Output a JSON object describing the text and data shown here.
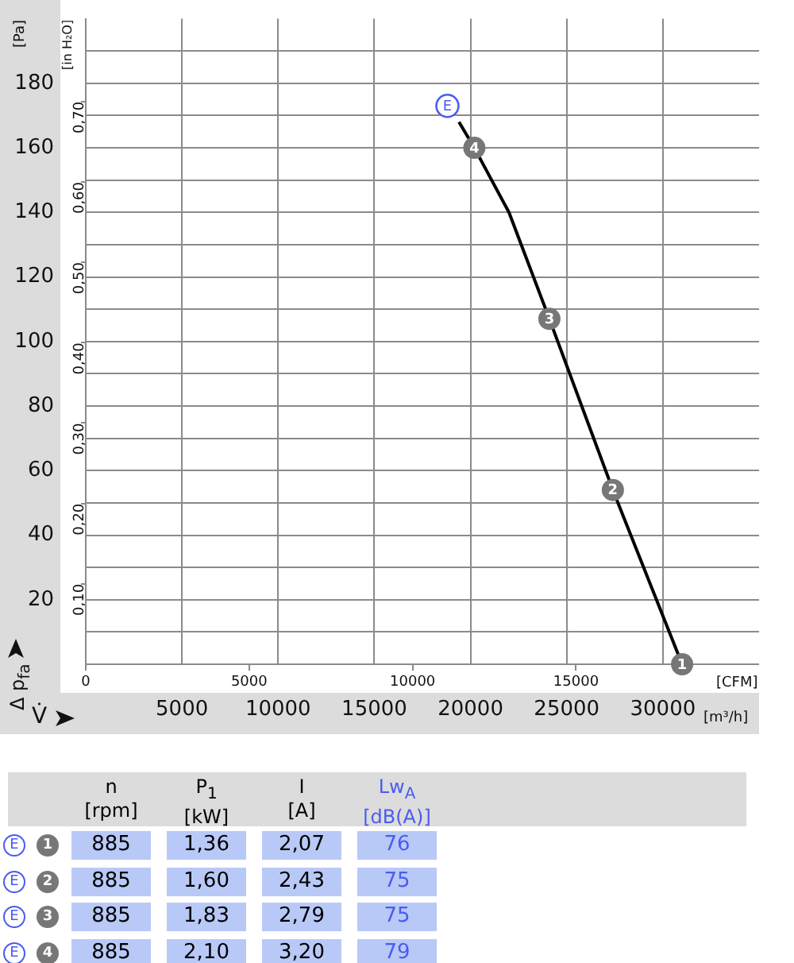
{
  "chart_data": [
    {
      "type": "line",
      "xlabel": "V̇",
      "ylabel": "Δ p$_{fa}$",
      "y2label": "[in H₂O]",
      "x2label": "[CFM]",
      "x": [
        19400,
        20200,
        22000,
        24100,
        27400,
        31000
      ],
      "series": [
        {
          "color": "#000000",
          "values": [
            168,
            160,
            140,
            107,
            54,
            0
          ]
        }
      ],
      "xlim": [
        0,
        35000
      ],
      "xticks": [
        5000,
        10000,
        15000,
        20000,
        25000,
        30000
      ],
      "x2lim": [
        0,
        20600
      ],
      "x2ticks": [
        0,
        5000,
        10000,
        15000
      ],
      "ylim": [
        0,
        200
      ],
      "yticks": [
        {
          "value": 10,
          "label": null
        },
        20,
        {
          "value": 30,
          "label": null
        },
        40,
        {
          "value": 50,
          "label": null
        },
        60,
        {
          "value": 70,
          "label": null
        },
        80,
        {
          "value": 90,
          "label": null
        },
        100,
        {
          "value": 110,
          "label": null
        },
        120,
        {
          "value": 130,
          "label": null
        },
        140,
        {
          "value": 150,
          "label": null
        },
        160,
        {
          "value": 170,
          "label": null
        },
        180,
        {
          "value": 190,
          "label": null
        }
      ],
      "y2lim": [
        0,
        0.803
      ],
      "y2ticks": [
        {
          "value": 0.1,
          "label": "0,10"
        },
        {
          "value": 0.2,
          "label": "0,20"
        },
        {
          "value": 0.3,
          "label": "0,30"
        },
        {
          "value": 0.4,
          "label": "0,40"
        },
        {
          "value": 0.5,
          "label": "0,50"
        },
        {
          "value": 0.6,
          "label": "0,60"
        },
        {
          "value": 0.7,
          "label": "0,70"
        }
      ],
      "grid": true,
      "legend": false,
      "line_style": "solid",
      "annotations": [
        {
          "text": "E",
          "x": 18800,
          "y": 173
        },
        {
          "text": "4",
          "x": 20200,
          "y": 160
        },
        {
          "text": "3",
          "x": 24100,
          "y": 107
        },
        {
          "text": "2",
          "x": 27400,
          "y": 54
        },
        {
          "text": "1",
          "x": 31000,
          "y": 0
        },
        "[Pa]",
        "[m³/h]"
      ]
    },
    {
      "type": "other",
      "categories": [
        "n\n[rpm]",
        "P$_{1}$\n[kW]",
        "I\n[A]",
        "Lw$_{A}$\n[dB(A)]"
      ],
      "y_categories": [
        "E",
        "E",
        "E",
        "E"
      ],
      "y2_categories": [
        "1",
        "2",
        "3",
        "4"
      ],
      "cell_labels": [
        [
          "885",
          "1,36",
          "2,07",
          "76"
        ],
        [
          "885",
          "1,60",
          "2,43",
          "75"
        ],
        [
          "885",
          "1,83",
          "2,79",
          "75"
        ],
        [
          "885",
          "2,10",
          "3,20",
          "79"
        ]
      ]
    }
  ]
}
